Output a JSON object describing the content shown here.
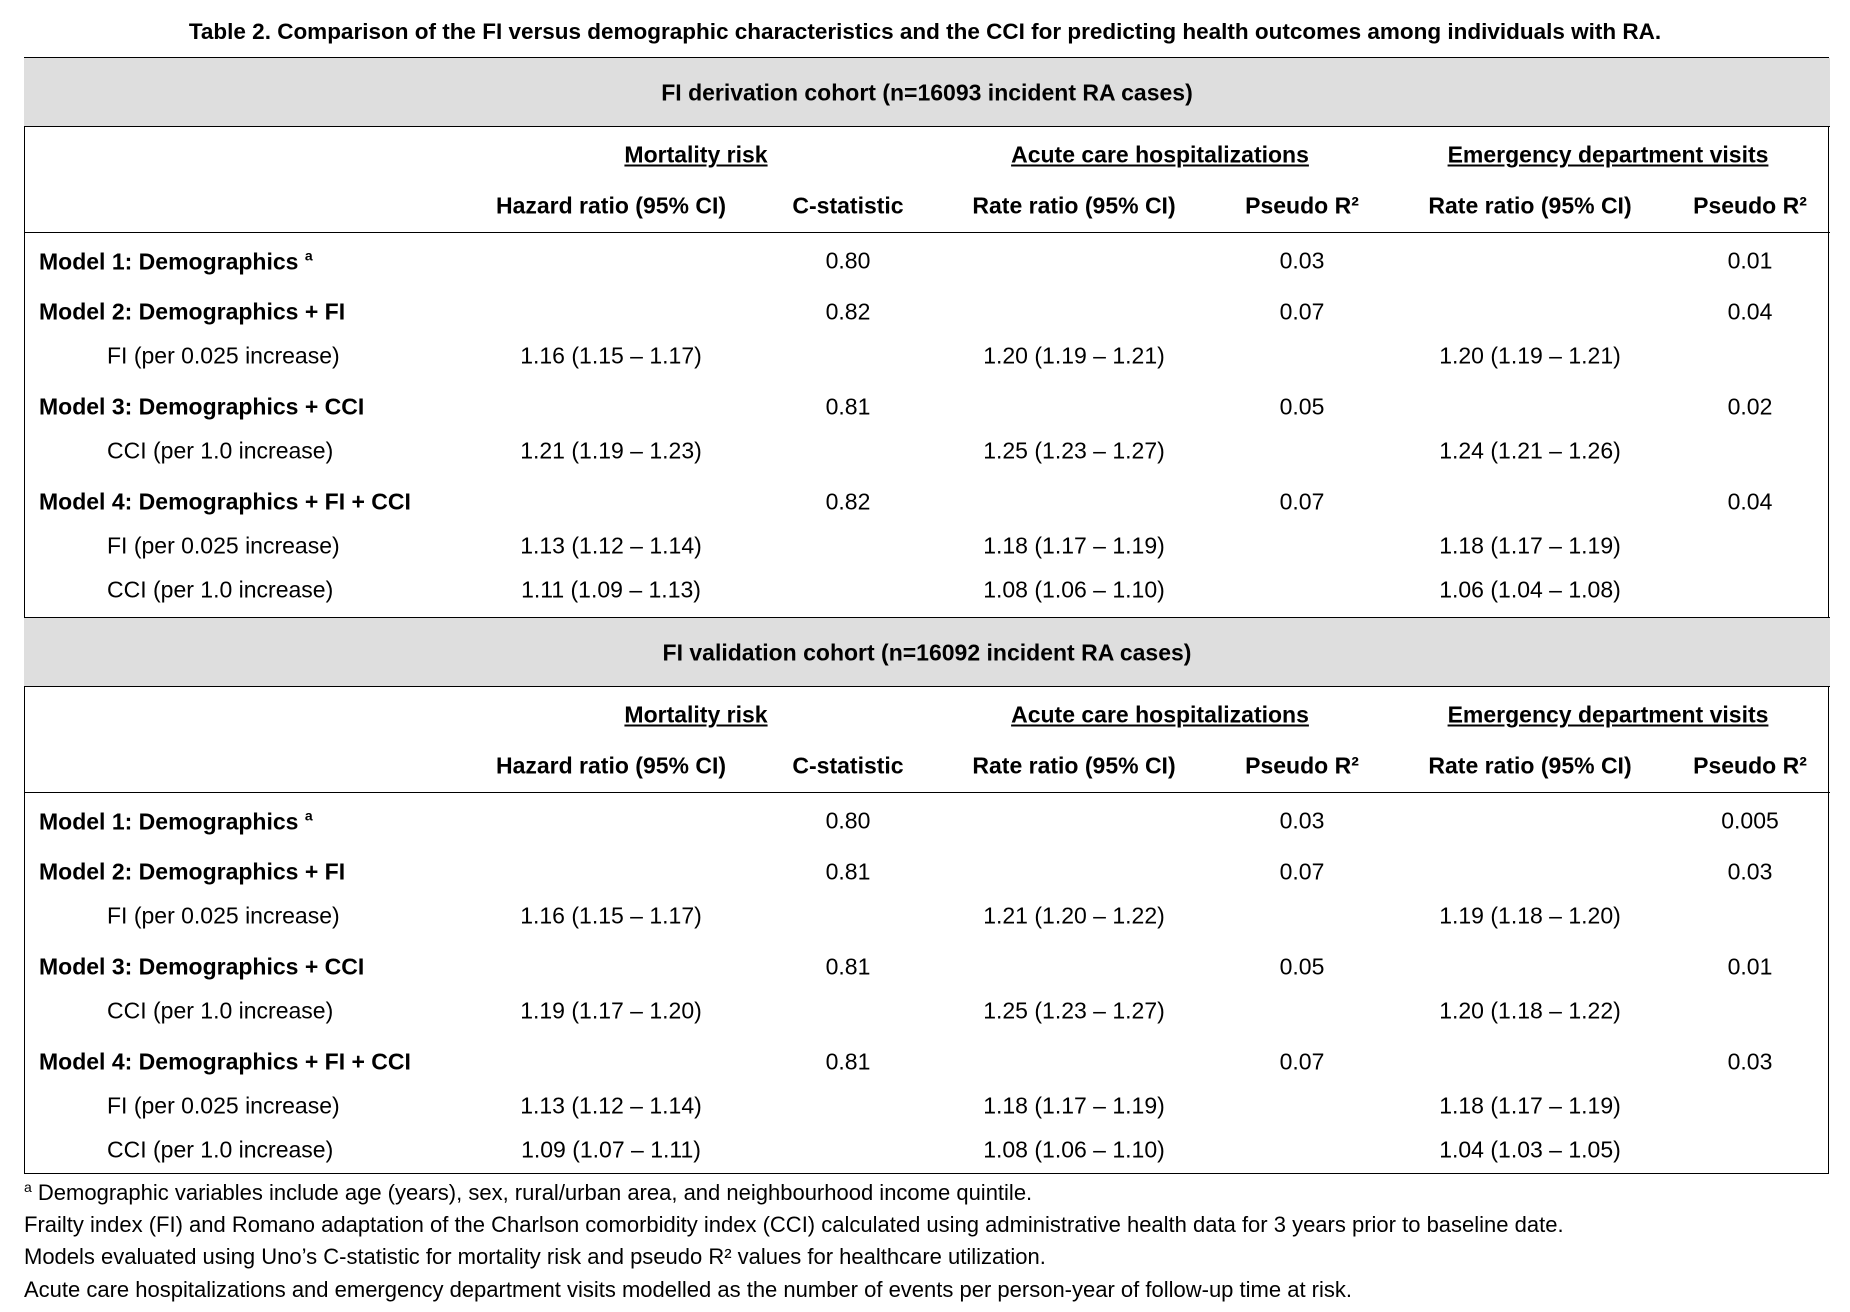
{
  "title": "Table 2. Comparison of the FI versus demographic characteristics and the CCI for predicting health outcomes among individuals with RA.",
  "cohorts": [
    {
      "heading": "FI derivation cohort (n=16093 incident RA cases)",
      "groups": [
        "Mortality risk",
        "Acute care hospitalizations",
        "Emergency department visits"
      ],
      "columns": [
        "Hazard ratio (95% CI)",
        "C-statistic",
        "Rate ratio (95% CI)",
        "Pseudo R²",
        "Rate ratio (95% CI)",
        "Pseudo R²"
      ],
      "rows": [
        {
          "kind": "model",
          "label": "Model 1: Demographics",
          "note": "a",
          "cells": [
            null,
            "0.80",
            null,
            "0.03",
            null,
            "0.01"
          ]
        },
        {
          "kind": "model",
          "label": "Model 2: Demographics + FI",
          "cells": [
            null,
            "0.82",
            null,
            "0.07",
            null,
            "0.04"
          ]
        },
        {
          "kind": "variable",
          "label": "FI (per 0.025 increase)",
          "cells": [
            "1.16 (1.15 – 1.17)",
            null,
            "1.20 (1.19 – 1.21)",
            null,
            "1.20 (1.19 – 1.21)",
            null
          ]
        },
        {
          "kind": "model",
          "label": "Model 3: Demographics + CCI",
          "cells": [
            null,
            "0.81",
            null,
            "0.05",
            null,
            "0.02"
          ]
        },
        {
          "kind": "variable",
          "label": "CCI (per 1.0 increase)",
          "cells": [
            "1.21 (1.19 – 1.23)",
            null,
            "1.25 (1.23 – 1.27)",
            null,
            "1.24 (1.21 – 1.26)",
            null
          ]
        },
        {
          "kind": "model",
          "label": "Model 4: Demographics + FI + CCI",
          "cells": [
            null,
            "0.82",
            null,
            "0.07",
            null,
            "0.04"
          ]
        },
        {
          "kind": "variable",
          "label": "FI (per 0.025 increase)",
          "cells": [
            "1.13 (1.12 – 1.14)",
            null,
            "1.18 (1.17 – 1.19)",
            null,
            "1.18 (1.17 – 1.19)",
            null
          ]
        },
        {
          "kind": "variable",
          "label": "CCI (per 1.0 increase)",
          "cells": [
            "1.11 (1.09 – 1.13)",
            null,
            "1.08 (1.06 – 1.10)",
            null,
            "1.06 (1.04 – 1.08)",
            null
          ]
        }
      ]
    },
    {
      "heading": "FI validation cohort (n=16092 incident RA cases)",
      "groups": [
        "Mortality risk",
        "Acute care hospitalizations",
        "Emergency department visits"
      ],
      "columns": [
        "Hazard ratio (95% CI)",
        "C-statistic",
        "Rate ratio (95% CI)",
        "Pseudo R²",
        "Rate ratio (95% CI)",
        "Pseudo R²"
      ],
      "rows": [
        {
          "kind": "model",
          "label": "Model 1: Demographics",
          "note": "a",
          "cells": [
            null,
            "0.80",
            null,
            "0.03",
            null,
            "0.005"
          ]
        },
        {
          "kind": "model",
          "label": "Model 2: Demographics + FI",
          "cells": [
            null,
            "0.81",
            null,
            "0.07",
            null,
            "0.03"
          ]
        },
        {
          "kind": "variable",
          "label": "FI (per 0.025 increase)",
          "cells": [
            "1.16 (1.15 – 1.17)",
            null,
            "1.21 (1.20 – 1.22)",
            null,
            "1.19 (1.18 – 1.20)",
            null
          ]
        },
        {
          "kind": "model",
          "label": "Model 3: Demographics + CCI",
          "cells": [
            null,
            "0.81",
            null,
            "0.05",
            null,
            "0.01"
          ]
        },
        {
          "kind": "variable",
          "label": "CCI (per 1.0 increase)",
          "cells": [
            "1.19 (1.17 – 1.20)",
            null,
            "1.25 (1.23 – 1.27)",
            null,
            "1.20 (1.18 – 1.22)",
            null
          ]
        },
        {
          "kind": "model",
          "label": "Model 4: Demographics + FI + CCI",
          "cells": [
            null,
            "0.81",
            null,
            "0.07",
            null,
            "0.03"
          ]
        },
        {
          "kind": "variable",
          "label": "FI (per 0.025 increase)",
          "cells": [
            "1.13 (1.12 – 1.14)",
            null,
            "1.18 (1.17 – 1.19)",
            null,
            "1.18 (1.17 – 1.19)",
            null
          ]
        },
        {
          "kind": "variable",
          "label": "CCI (per 1.0 increase)",
          "cells": [
            "1.09 (1.07 – 1.11)",
            null,
            "1.08 (1.06 – 1.10)",
            null,
            "1.04 (1.03 – 1.05)",
            null
          ]
        }
      ]
    }
  ],
  "footnotes": [
    {
      "note": "a",
      "text": "Demographic variables include age (years), sex, rural/urban area, and neighbourhood income quintile."
    },
    {
      "text": "Frailty index (FI) and Romano adaptation of the Charlson comorbidity index (CCI) calculated using administrative health data for 3 years prior to baseline date."
    },
    {
      "text": "Models evaluated using Uno’s C-statistic for mortality risk and pseudo R² values for healthcare utilization."
    },
    {
      "text": "Acute care hospitalizations and emergency department visits modelled as the number of events per person-year of follow-up time at risk."
    }
  ]
}
